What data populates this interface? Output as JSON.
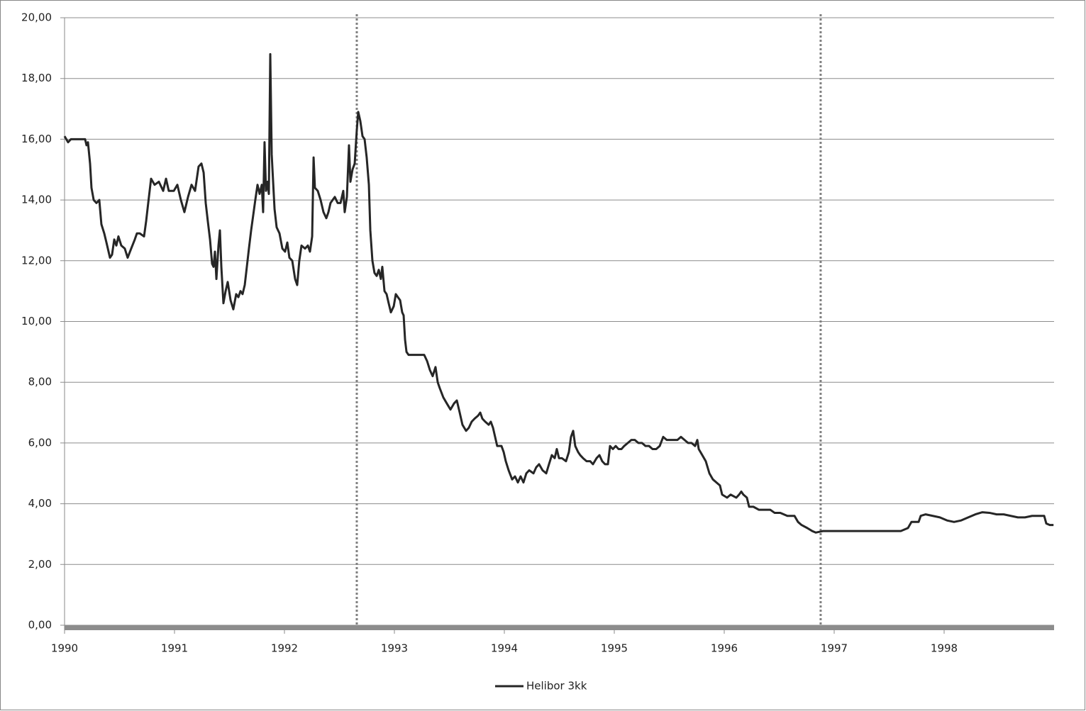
{
  "chart_data": {
    "type": "line",
    "x": [
      1990.0,
      1990.032,
      1990.058,
      1990.187,
      1990.2,
      1990.213,
      1990.232,
      1990.245,
      1990.265,
      1990.29,
      1990.316,
      1990.335,
      1990.361,
      1990.381,
      1990.413,
      1990.432,
      1990.452,
      1990.471,
      1990.49,
      1990.516,
      1990.548,
      1990.574,
      1990.606,
      1990.639,
      1990.658,
      1990.684,
      1990.723,
      1990.742,
      1990.761,
      1990.787,
      1990.819,
      1990.858,
      1990.897,
      1990.923,
      1990.948,
      1990.994,
      1991.026,
      1991.058,
      1991.09,
      1991.123,
      1991.155,
      1991.187,
      1991.219,
      1991.245,
      1991.265,
      1991.284,
      1991.303,
      1991.323,
      1991.342,
      1991.355,
      1991.368,
      1991.381,
      1991.4,
      1991.413,
      1991.426,
      1991.445,
      1991.465,
      1991.484,
      1991.51,
      1991.535,
      1991.561,
      1991.581,
      1991.6,
      1991.619,
      1991.639,
      1991.658,
      1991.677,
      1991.697,
      1991.716,
      1991.735,
      1991.755,
      1991.774,
      1991.794,
      1991.806,
      1991.819,
      1991.832,
      1991.845,
      1991.858,
      1991.871,
      1991.884,
      1991.897,
      1991.91,
      1991.929,
      1991.955,
      1991.981,
      1992.006,
      1992.026,
      1992.045,
      1992.071,
      1992.097,
      1992.116,
      1992.135,
      1992.155,
      1992.187,
      1992.213,
      1992.232,
      1992.252,
      1992.265,
      1992.277,
      1992.303,
      1992.329,
      1992.355,
      1992.381,
      1992.4,
      1992.419,
      1992.458,
      1992.484,
      1992.51,
      1992.535,
      1992.548,
      1992.568,
      1992.587,
      1992.6,
      1992.619,
      1992.639,
      1992.658,
      1992.671,
      1992.69,
      1992.71,
      1992.729,
      1992.748,
      1992.768,
      1992.781,
      1992.8,
      1992.819,
      1992.839,
      1992.858,
      1992.877,
      1992.89,
      1992.91,
      1992.929,
      1992.948,
      1992.968,
      1992.994,
      1993.013,
      1993.032,
      1993.052,
      1993.071,
      1993.084,
      1993.097,
      1993.11,
      1993.129,
      1993.168,
      1993.219,
      1993.271,
      1993.297,
      1993.323,
      1993.348,
      1993.374,
      1993.394,
      1993.413,
      1993.445,
      1993.477,
      1993.51,
      1993.542,
      1993.568,
      1993.594,
      1993.619,
      1993.652,
      1993.677,
      1993.703,
      1993.729,
      1993.761,
      1993.781,
      1993.8,
      1993.826,
      1993.858,
      1993.877,
      1993.897,
      1993.916,
      1993.935,
      1993.974,
      1993.994,
      1994.013,
      1994.039,
      1994.071,
      1994.097,
      1994.123,
      1994.148,
      1994.174,
      1994.2,
      1994.226,
      1994.265,
      1994.29,
      1994.316,
      1994.348,
      1994.381,
      1994.406,
      1994.432,
      1994.458,
      1994.477,
      1994.497,
      1994.523,
      1994.561,
      1994.587,
      1994.606,
      1994.626,
      1994.645,
      1994.671,
      1994.69,
      1994.716,
      1994.748,
      1994.781,
      1994.806,
      1994.839,
      1994.865,
      1994.89,
      1994.916,
      1994.942,
      1994.961,
      1994.987,
      1995.013,
      1995.039,
      1995.065,
      1995.09,
      1995.123,
      1995.155,
      1995.187,
      1995.219,
      1995.252,
      1995.284,
      1995.316,
      1995.348,
      1995.381,
      1995.413,
      1995.445,
      1995.477,
      1995.51,
      1995.542,
      1995.574,
      1995.606,
      1995.639,
      1995.671,
      1995.703,
      1995.735,
      1995.755,
      1995.768,
      1995.8,
      1995.832,
      1995.865,
      1995.897,
      1995.929,
      1995.961,
      1995.981,
      1996.026,
      1996.058,
      1996.11,
      1996.135,
      1996.155,
      1996.174,
      1996.206,
      1996.226,
      1996.265,
      1996.316,
      1996.368,
      1996.419,
      1996.458,
      1996.51,
      1996.574,
      1996.639,
      1996.671,
      1996.703,
      1996.755,
      1996.8,
      1996.832,
      1996.897,
      1996.961,
      1997.026,
      1997.09,
      1997.155,
      1997.219,
      1997.284,
      1997.348,
      1997.413,
      1997.477,
      1997.542,
      1997.606,
      1997.671,
      1997.703,
      1997.768,
      1997.787,
      1997.832,
      1997.897,
      1997.961,
      1998.026,
      1998.09,
      1998.155,
      1998.219,
      1998.284,
      1998.348,
      1998.413,
      1998.477,
      1998.542,
      1998.606,
      1998.671,
      1998.735,
      1998.8,
      1998.865,
      1998.91,
      1998.929,
      1998.961,
      1998.995
    ],
    "series": [
      {
        "name": "Helibor 3kk",
        "color": "#262626",
        "values": [
          16.1,
          15.9,
          16.0,
          16.0,
          15.8,
          15.9,
          15.2,
          14.4,
          14.0,
          13.9,
          14.0,
          13.2,
          12.9,
          12.6,
          12.1,
          12.2,
          12.7,
          12.5,
          12.8,
          12.5,
          12.4,
          12.1,
          12.4,
          12.7,
          12.9,
          12.9,
          12.8,
          13.3,
          13.9,
          14.7,
          14.5,
          14.6,
          14.3,
          14.7,
          14.3,
          14.3,
          14.5,
          14.0,
          13.6,
          14.1,
          14.5,
          14.3,
          15.1,
          15.2,
          14.9,
          13.9,
          13.3,
          12.7,
          11.9,
          11.8,
          12.3,
          11.4,
          12.5,
          13.0,
          11.8,
          10.6,
          11.0,
          11.3,
          10.7,
          10.4,
          10.9,
          10.8,
          11.0,
          10.9,
          11.2,
          11.8,
          12.4,
          13.0,
          13.5,
          14.0,
          14.5,
          14.2,
          14.5,
          13.6,
          15.9,
          14.3,
          14.6,
          14.2,
          18.8,
          15.5,
          14.6,
          13.7,
          13.1,
          12.9,
          12.4,
          12.3,
          12.6,
          12.1,
          12.0,
          11.4,
          11.2,
          12.0,
          12.5,
          12.4,
          12.5,
          12.3,
          12.8,
          15.4,
          14.4,
          14.3,
          14.0,
          13.6,
          13.4,
          13.6,
          13.9,
          14.1,
          13.9,
          13.9,
          14.3,
          13.6,
          14.1,
          15.8,
          14.6,
          15.0,
          15.2,
          16.3,
          16.9,
          16.6,
          16.1,
          16.0,
          15.4,
          14.5,
          13.0,
          12.0,
          11.6,
          11.5,
          11.7,
          11.4,
          11.8,
          11.0,
          10.9,
          10.6,
          10.3,
          10.5,
          10.9,
          10.8,
          10.7,
          10.3,
          10.2,
          9.4,
          9.0,
          8.9,
          8.9,
          8.9,
          8.9,
          8.7,
          8.4,
          8.2,
          8.5,
          8.0,
          7.8,
          7.5,
          7.3,
          7.1,
          7.3,
          7.4,
          7.0,
          6.6,
          6.4,
          6.5,
          6.7,
          6.8,
          6.9,
          7.0,
          6.8,
          6.7,
          6.6,
          6.7,
          6.5,
          6.2,
          5.9,
          5.9,
          5.7,
          5.4,
          5.1,
          4.8,
          4.9,
          4.7,
          4.9,
          4.7,
          5.0,
          5.1,
          5.0,
          5.2,
          5.3,
          5.1,
          5.0,
          5.3,
          5.6,
          5.5,
          5.8,
          5.5,
          5.5,
          5.4,
          5.7,
          6.2,
          6.4,
          5.9,
          5.7,
          5.6,
          5.5,
          5.4,
          5.4,
          5.3,
          5.5,
          5.6,
          5.4,
          5.3,
          5.3,
          5.9,
          5.8,
          5.9,
          5.8,
          5.8,
          5.9,
          6.0,
          6.1,
          6.1,
          6.0,
          6.0,
          5.9,
          5.9,
          5.8,
          5.8,
          5.9,
          6.2,
          6.1,
          6.1,
          6.1,
          6.1,
          6.2,
          6.1,
          6.0,
          6.0,
          5.9,
          6.1,
          5.8,
          5.6,
          5.4,
          5.0,
          4.8,
          4.7,
          4.6,
          4.3,
          4.2,
          4.3,
          4.2,
          4.3,
          4.4,
          4.3,
          4.2,
          3.9,
          3.9,
          3.8,
          3.8,
          3.8,
          3.7,
          3.7,
          3.6,
          3.6,
          3.4,
          3.3,
          3.2,
          3.1,
          3.05,
          3.1,
          3.1,
          3.1,
          3.1,
          3.1,
          3.1,
          3.1,
          3.1,
          3.1,
          3.1,
          3.1,
          3.1,
          3.2,
          3.4,
          3.4,
          3.6,
          3.65,
          3.6,
          3.55,
          3.45,
          3.4,
          3.45,
          3.55,
          3.65,
          3.72,
          3.7,
          3.65,
          3.65,
          3.6,
          3.55,
          3.55,
          3.6,
          3.6,
          3.6,
          3.35,
          3.3,
          3.3
        ]
      }
    ],
    "xlim": [
      1990,
      1999
    ],
    "xticks": [
      1990,
      1991,
      1992,
      1993,
      1994,
      1995,
      1996,
      1997,
      1998
    ],
    "ylim": [
      0,
      20
    ],
    "yticks": [
      {
        "value": 0,
        "label": "0,00"
      },
      {
        "value": 2,
        "label": "2,00"
      },
      {
        "value": 4,
        "label": "4,00"
      },
      {
        "value": 6,
        "label": "6,00"
      },
      {
        "value": 8,
        "label": "8,00"
      },
      {
        "value": 10,
        "label": "10,00"
      },
      {
        "value": 12,
        "label": "12,00"
      },
      {
        "value": 14,
        "label": "14,00"
      },
      {
        "value": 16,
        "label": "16,00"
      },
      {
        "value": 18,
        "label": "18,00"
      },
      {
        "value": 20,
        "label": "20,00"
      }
    ],
    "vlines": [
      1992.658,
      1996.877
    ],
    "grid": true,
    "legend": "bottom"
  }
}
